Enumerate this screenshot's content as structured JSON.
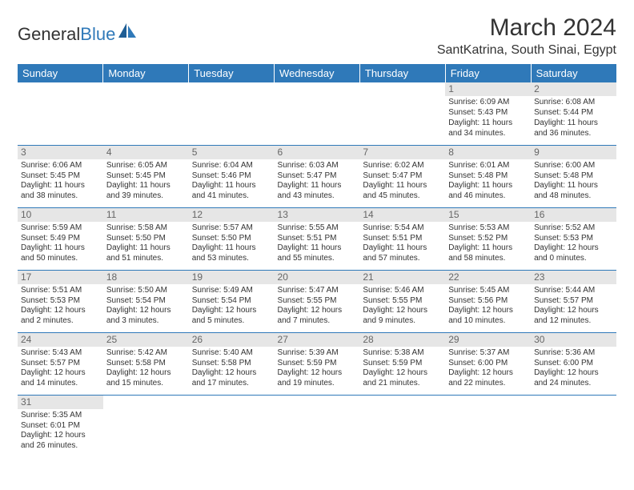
{
  "logo": {
    "text1": "General",
    "text2": "Blue"
  },
  "title": "March 2024",
  "location": "SantKatrina, South Sinai, Egypt",
  "colors": {
    "header_bg": "#2f79b9",
    "header_text": "#ffffff",
    "daynum_bg": "#e6e6e6",
    "daynum_text": "#666666",
    "border": "#2f79b9",
    "body_text": "#333333"
  },
  "weekdays": [
    "Sunday",
    "Monday",
    "Tuesday",
    "Wednesday",
    "Thursday",
    "Friday",
    "Saturday"
  ],
  "weeks": [
    [
      null,
      null,
      null,
      null,
      null,
      {
        "n": "1",
        "sr": "Sunrise: 6:09 AM",
        "ss": "Sunset: 5:43 PM",
        "d1": "Daylight: 11 hours",
        "d2": "and 34 minutes."
      },
      {
        "n": "2",
        "sr": "Sunrise: 6:08 AM",
        "ss": "Sunset: 5:44 PM",
        "d1": "Daylight: 11 hours",
        "d2": "and 36 minutes."
      }
    ],
    [
      {
        "n": "3",
        "sr": "Sunrise: 6:06 AM",
        "ss": "Sunset: 5:45 PM",
        "d1": "Daylight: 11 hours",
        "d2": "and 38 minutes."
      },
      {
        "n": "4",
        "sr": "Sunrise: 6:05 AM",
        "ss": "Sunset: 5:45 PM",
        "d1": "Daylight: 11 hours",
        "d2": "and 39 minutes."
      },
      {
        "n": "5",
        "sr": "Sunrise: 6:04 AM",
        "ss": "Sunset: 5:46 PM",
        "d1": "Daylight: 11 hours",
        "d2": "and 41 minutes."
      },
      {
        "n": "6",
        "sr": "Sunrise: 6:03 AM",
        "ss": "Sunset: 5:47 PM",
        "d1": "Daylight: 11 hours",
        "d2": "and 43 minutes."
      },
      {
        "n": "7",
        "sr": "Sunrise: 6:02 AM",
        "ss": "Sunset: 5:47 PM",
        "d1": "Daylight: 11 hours",
        "d2": "and 45 minutes."
      },
      {
        "n": "8",
        "sr": "Sunrise: 6:01 AM",
        "ss": "Sunset: 5:48 PM",
        "d1": "Daylight: 11 hours",
        "d2": "and 46 minutes."
      },
      {
        "n": "9",
        "sr": "Sunrise: 6:00 AM",
        "ss": "Sunset: 5:48 PM",
        "d1": "Daylight: 11 hours",
        "d2": "and 48 minutes."
      }
    ],
    [
      {
        "n": "10",
        "sr": "Sunrise: 5:59 AM",
        "ss": "Sunset: 5:49 PM",
        "d1": "Daylight: 11 hours",
        "d2": "and 50 minutes."
      },
      {
        "n": "11",
        "sr": "Sunrise: 5:58 AM",
        "ss": "Sunset: 5:50 PM",
        "d1": "Daylight: 11 hours",
        "d2": "and 51 minutes."
      },
      {
        "n": "12",
        "sr": "Sunrise: 5:57 AM",
        "ss": "Sunset: 5:50 PM",
        "d1": "Daylight: 11 hours",
        "d2": "and 53 minutes."
      },
      {
        "n": "13",
        "sr": "Sunrise: 5:55 AM",
        "ss": "Sunset: 5:51 PM",
        "d1": "Daylight: 11 hours",
        "d2": "and 55 minutes."
      },
      {
        "n": "14",
        "sr": "Sunrise: 5:54 AM",
        "ss": "Sunset: 5:51 PM",
        "d1": "Daylight: 11 hours",
        "d2": "and 57 minutes."
      },
      {
        "n": "15",
        "sr": "Sunrise: 5:53 AM",
        "ss": "Sunset: 5:52 PM",
        "d1": "Daylight: 11 hours",
        "d2": "and 58 minutes."
      },
      {
        "n": "16",
        "sr": "Sunrise: 5:52 AM",
        "ss": "Sunset: 5:53 PM",
        "d1": "Daylight: 12 hours",
        "d2": "and 0 minutes."
      }
    ],
    [
      {
        "n": "17",
        "sr": "Sunrise: 5:51 AM",
        "ss": "Sunset: 5:53 PM",
        "d1": "Daylight: 12 hours",
        "d2": "and 2 minutes."
      },
      {
        "n": "18",
        "sr": "Sunrise: 5:50 AM",
        "ss": "Sunset: 5:54 PM",
        "d1": "Daylight: 12 hours",
        "d2": "and 3 minutes."
      },
      {
        "n": "19",
        "sr": "Sunrise: 5:49 AM",
        "ss": "Sunset: 5:54 PM",
        "d1": "Daylight: 12 hours",
        "d2": "and 5 minutes."
      },
      {
        "n": "20",
        "sr": "Sunrise: 5:47 AM",
        "ss": "Sunset: 5:55 PM",
        "d1": "Daylight: 12 hours",
        "d2": "and 7 minutes."
      },
      {
        "n": "21",
        "sr": "Sunrise: 5:46 AM",
        "ss": "Sunset: 5:55 PM",
        "d1": "Daylight: 12 hours",
        "d2": "and 9 minutes."
      },
      {
        "n": "22",
        "sr": "Sunrise: 5:45 AM",
        "ss": "Sunset: 5:56 PM",
        "d1": "Daylight: 12 hours",
        "d2": "and 10 minutes."
      },
      {
        "n": "23",
        "sr": "Sunrise: 5:44 AM",
        "ss": "Sunset: 5:57 PM",
        "d1": "Daylight: 12 hours",
        "d2": "and 12 minutes."
      }
    ],
    [
      {
        "n": "24",
        "sr": "Sunrise: 5:43 AM",
        "ss": "Sunset: 5:57 PM",
        "d1": "Daylight: 12 hours",
        "d2": "and 14 minutes."
      },
      {
        "n": "25",
        "sr": "Sunrise: 5:42 AM",
        "ss": "Sunset: 5:58 PM",
        "d1": "Daylight: 12 hours",
        "d2": "and 15 minutes."
      },
      {
        "n": "26",
        "sr": "Sunrise: 5:40 AM",
        "ss": "Sunset: 5:58 PM",
        "d1": "Daylight: 12 hours",
        "d2": "and 17 minutes."
      },
      {
        "n": "27",
        "sr": "Sunrise: 5:39 AM",
        "ss": "Sunset: 5:59 PM",
        "d1": "Daylight: 12 hours",
        "d2": "and 19 minutes."
      },
      {
        "n": "28",
        "sr": "Sunrise: 5:38 AM",
        "ss": "Sunset: 5:59 PM",
        "d1": "Daylight: 12 hours",
        "d2": "and 21 minutes."
      },
      {
        "n": "29",
        "sr": "Sunrise: 5:37 AM",
        "ss": "Sunset: 6:00 PM",
        "d1": "Daylight: 12 hours",
        "d2": "and 22 minutes."
      },
      {
        "n": "30",
        "sr": "Sunrise: 5:36 AM",
        "ss": "Sunset: 6:00 PM",
        "d1": "Daylight: 12 hours",
        "d2": "and 24 minutes."
      }
    ],
    [
      {
        "n": "31",
        "sr": "Sunrise: 5:35 AM",
        "ss": "Sunset: 6:01 PM",
        "d1": "Daylight: 12 hours",
        "d2": "and 26 minutes."
      },
      null,
      null,
      null,
      null,
      null,
      null
    ]
  ]
}
